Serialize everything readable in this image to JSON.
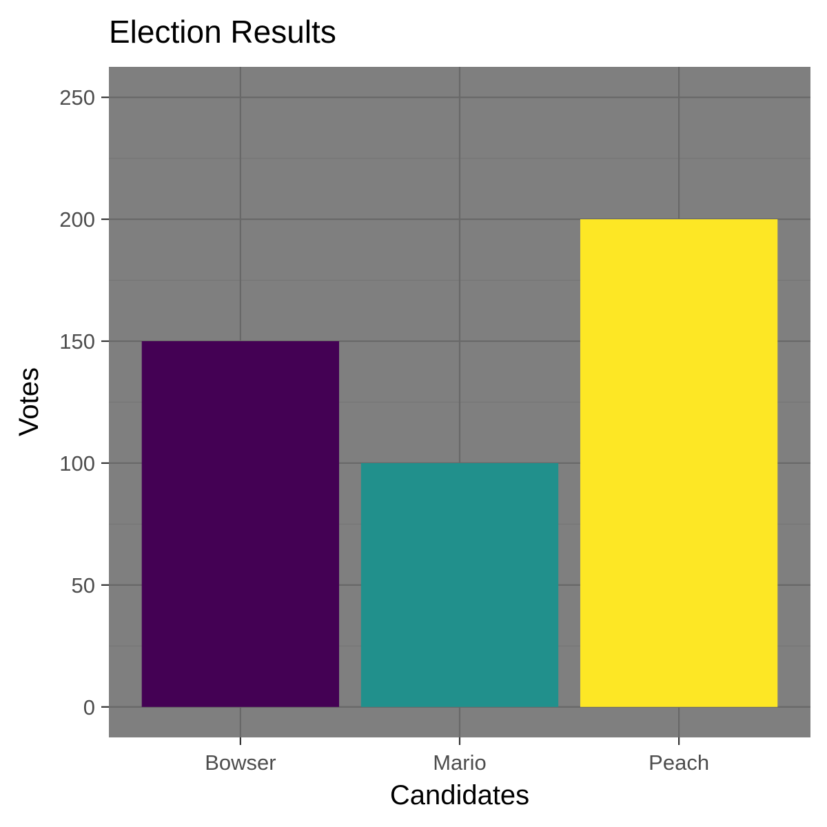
{
  "chart_data": {
    "type": "bar",
    "title": "Election Results",
    "xlabel": "Candidates",
    "ylabel": "Votes",
    "categories": [
      "Bowser",
      "Mario",
      "Peach"
    ],
    "values": [
      150,
      100,
      200
    ],
    "bar_colors": [
      "#440154",
      "#21908C",
      "#FDE725"
    ],
    "ylim": [
      -12.5,
      262.5
    ],
    "y_ticks": [
      0,
      50,
      100,
      150,
      200,
      250
    ],
    "y_tick_labels": [
      "0",
      "50",
      "100",
      "150",
      "200",
      "250"
    ],
    "grid": true,
    "panel_background": "#7F7F7F",
    "legend": "none"
  }
}
